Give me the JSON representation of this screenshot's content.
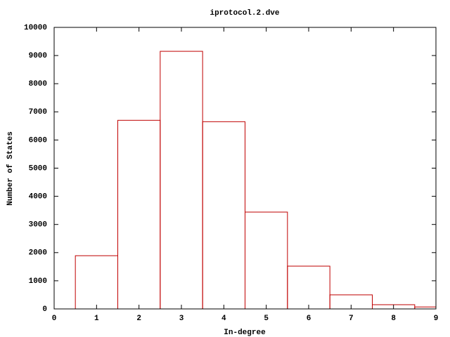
{
  "chart_data": {
    "type": "histogram",
    "title": "iprotocol.2.dve",
    "x_label": "In-degree",
    "y_label": "Number of States",
    "bins": [
      0.5,
      1.5,
      2.5,
      3.5,
      4.5,
      5.5,
      6.5,
      7.5,
      8.5,
      9.5
    ],
    "counts": [
      1890,
      6700,
      9150,
      6650,
      3440,
      1520,
      500,
      150,
      70
    ],
    "color": "#c00000",
    "xlim": [
      0,
      9
    ],
    "xticks": [
      0,
      1,
      2,
      3,
      4,
      5,
      6,
      7,
      8,
      9
    ],
    "ylim": [
      0,
      10000
    ],
    "yticks": [
      0,
      1000,
      2000,
      3000,
      4000,
      5000,
      6000,
      7000,
      8000,
      9000,
      10000
    ]
  }
}
